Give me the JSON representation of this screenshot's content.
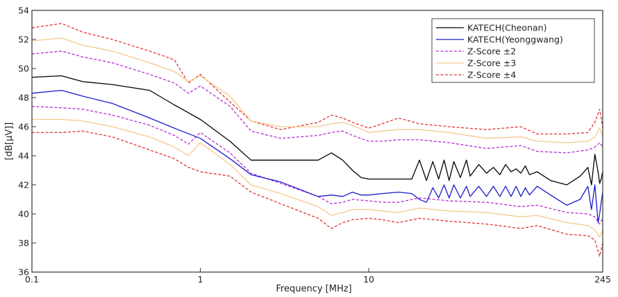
{
  "chart_data": {
    "type": "line",
    "title": "",
    "xlabel": "Frequency [MHz]",
    "ylabel": "[dB[µV]]",
    "xscale": "log",
    "xlim": [
      0.1,
      245
    ],
    "ylim": [
      36,
      54
    ],
    "xticks": [
      0.1,
      1,
      10,
      245
    ],
    "xtick_labels": [
      "0.1",
      "1",
      "10",
      "245"
    ],
    "yticks": [
      36,
      38,
      40,
      42,
      44,
      46,
      48,
      50,
      52,
      54
    ],
    "ytick_labels": [
      "36",
      "38",
      "40",
      "42",
      "44",
      "46",
      "48",
      "50",
      "52",
      "54"
    ],
    "grid": false,
    "legend_position": "top-right",
    "series": [
      {
        "name": "KATECH(Cheonan)",
        "color": "#000000",
        "style": "solid",
        "x": [
          0.1,
          0.15,
          0.2,
          0.3,
          0.5,
          0.7,
          1.0,
          1.5,
          2.0,
          3.0,
          5.0,
          6.0,
          7.0,
          8.0,
          9.0,
          10.0,
          12.0,
          15.0,
          18.0,
          20.0,
          22.0,
          24.0,
          26.0,
          28.0,
          30.0,
          32.0,
          35.0,
          38.0,
          40.0,
          45.0,
          50.0,
          55.0,
          60.0,
          65.0,
          70.0,
          75.0,
          80.0,
          85.0,
          90.0,
          100.0,
          120.0,
          150.0,
          180.0,
          200.0,
          210.0,
          220.0,
          230.0,
          235.0,
          240.0,
          245.0
        ],
        "y": [
          49.4,
          49.5,
          49.1,
          48.9,
          48.5,
          47.5,
          46.5,
          45.0,
          43.7,
          43.7,
          43.7,
          44.2,
          43.7,
          43.0,
          42.5,
          42.4,
          42.4,
          42.4,
          42.4,
          43.7,
          42.3,
          43.6,
          42.4,
          43.7,
          42.3,
          43.6,
          42.5,
          43.7,
          42.6,
          43.4,
          42.8,
          43.2,
          42.7,
          43.4,
          42.9,
          43.1,
          42.8,
          43.3,
          42.7,
          42.9,
          42.3,
          42.0,
          42.6,
          43.2,
          42.0,
          44.1,
          42.9,
          42.1,
          42.4,
          42.9
        ]
      },
      {
        "name": "KATECH(Yeonggwang)",
        "color": "#1a1acc",
        "style": "solid",
        "x": [
          0.1,
          0.15,
          0.2,
          0.3,
          0.5,
          0.7,
          1.0,
          1.5,
          2.0,
          3.0,
          5.0,
          6.0,
          7.0,
          8.0,
          9.0,
          10.0,
          12.0,
          15.0,
          18.0,
          20.0,
          22.0,
          24.0,
          26.0,
          28.0,
          30.0,
          32.0,
          35.0,
          38.0,
          40.0,
          45.0,
          50.0,
          55.0,
          60.0,
          65.0,
          70.0,
          75.0,
          80.0,
          85.0,
          90.0,
          100.0,
          120.0,
          150.0,
          180.0,
          200.0,
          210.0,
          220.0,
          230.0,
          235.0,
          240.0,
          245.0
        ],
        "y": [
          48.3,
          48.5,
          48.1,
          47.6,
          46.6,
          45.9,
          45.2,
          43.8,
          42.7,
          42.2,
          41.2,
          41.3,
          41.2,
          41.5,
          41.3,
          41.3,
          41.4,
          41.5,
          41.4,
          41.0,
          40.8,
          41.8,
          41.1,
          42.0,
          41.1,
          42.0,
          41.1,
          41.9,
          41.2,
          41.9,
          41.2,
          41.9,
          41.2,
          41.9,
          41.2,
          41.9,
          41.2,
          41.8,
          41.3,
          41.9,
          41.3,
          40.6,
          41.0,
          41.9,
          40.3,
          42.0,
          39.4,
          40.0,
          40.8,
          41.5
        ]
      },
      {
        "name": "Z-Score ±2",
        "color": "#b52ad8",
        "style": "dashed",
        "band": "pair",
        "x": [
          0.1,
          0.15,
          0.2,
          0.3,
          0.5,
          0.7,
          0.85,
          1.0,
          1.5,
          2.0,
          3.0,
          5.0,
          6.0,
          7.0,
          8.0,
          10.0,
          12.0,
          15.0,
          20.0,
          30.0,
          50.0,
          80.0,
          100.0,
          150.0,
          200.0,
          220.0,
          235.0,
          245.0
        ],
        "upper": [
          51.0,
          51.2,
          50.8,
          50.4,
          49.6,
          49.0,
          48.3,
          48.8,
          47.4,
          45.7,
          45.2,
          45.4,
          45.6,
          45.7,
          45.4,
          45.0,
          45.0,
          45.1,
          45.1,
          44.9,
          44.5,
          44.7,
          44.3,
          44.2,
          44.4,
          44.6,
          44.9,
          44.6
        ],
        "lower": [
          47.4,
          47.3,
          47.2,
          46.8,
          46.1,
          45.4,
          44.8,
          45.6,
          44.2,
          42.8,
          42.1,
          41.2,
          40.7,
          40.8,
          41.0,
          40.9,
          40.8,
          40.8,
          41.1,
          40.9,
          40.8,
          40.5,
          40.6,
          40.1,
          40.0,
          39.8,
          39.3,
          39.7
        ]
      },
      {
        "name": "Z-Score ±3",
        "color": "#f5c98a",
        "style": "solid",
        "band": "pair",
        "x": [
          0.1,
          0.15,
          0.2,
          0.3,
          0.5,
          0.7,
          0.85,
          1.0,
          1.5,
          2.0,
          3.0,
          5.0,
          6.0,
          7.0,
          8.0,
          10.0,
          12.0,
          15.0,
          20.0,
          30.0,
          50.0,
          80.0,
          100.0,
          150.0,
          200.0,
          220.0,
          235.0,
          245.0
        ],
        "upper": [
          51.9,
          52.1,
          51.6,
          51.2,
          50.4,
          49.8,
          49.1,
          49.5,
          48.1,
          46.4,
          46.0,
          46.0,
          46.2,
          46.3,
          46.1,
          45.6,
          45.7,
          45.8,
          45.8,
          45.6,
          45.2,
          45.3,
          45.0,
          44.9,
          45.0,
          45.3,
          45.9,
          45.3
        ],
        "lower": [
          46.5,
          46.5,
          46.4,
          46.0,
          45.3,
          44.6,
          44.0,
          44.9,
          43.4,
          42.0,
          41.4,
          40.5,
          39.9,
          40.1,
          40.3,
          40.3,
          40.2,
          40.1,
          40.4,
          40.2,
          40.1,
          39.8,
          39.9,
          39.4,
          39.2,
          38.9,
          38.4,
          38.9
        ]
      },
      {
        "name": "Z-Score ±4",
        "color": "#e23030",
        "style": "dashed",
        "band": "pair",
        "x": [
          0.1,
          0.15,
          0.2,
          0.3,
          0.5,
          0.7,
          0.85,
          1.0,
          1.5,
          2.0,
          3.0,
          5.0,
          6.0,
          7.0,
          8.0,
          10.0,
          12.0,
          15.0,
          20.0,
          30.0,
          50.0,
          80.0,
          100.0,
          150.0,
          200.0,
          220.0,
          235.0,
          245.0
        ],
        "upper": [
          52.8,
          53.1,
          52.5,
          52.0,
          51.2,
          50.6,
          49.0,
          49.6,
          47.7,
          46.4,
          45.8,
          46.3,
          46.8,
          46.6,
          46.3,
          45.9,
          46.2,
          46.6,
          46.2,
          46.0,
          45.8,
          46.0,
          45.5,
          45.5,
          45.6,
          46.3,
          47.2,
          45.9
        ],
        "lower": [
          45.6,
          45.6,
          45.7,
          45.3,
          44.4,
          43.8,
          43.2,
          42.9,
          42.6,
          41.5,
          40.7,
          39.7,
          39.0,
          39.4,
          39.6,
          39.7,
          39.6,
          39.4,
          39.7,
          39.5,
          39.3,
          39.0,
          39.2,
          38.6,
          38.5,
          38.2,
          37.1,
          38.0
        ]
      }
    ]
  }
}
